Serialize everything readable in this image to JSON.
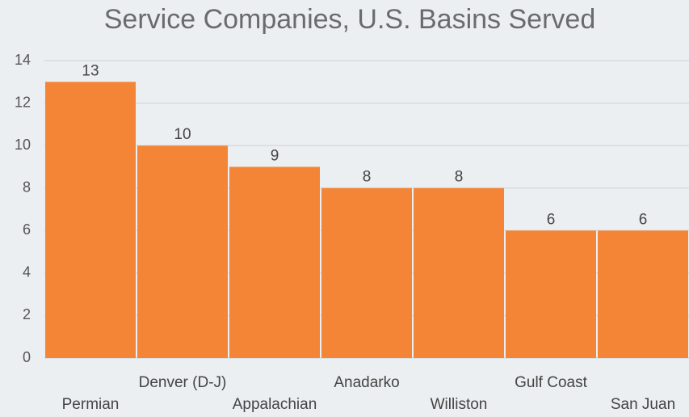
{
  "chart_data": {
    "type": "bar",
    "title": "Service Companies, U.S. Basins Served",
    "categories": [
      "Permian",
      "Denver (D-J)",
      "Appalachian",
      "Anadarko",
      "Williston",
      "Gulf Coast",
      "San Juan"
    ],
    "values": [
      13,
      10,
      9,
      8,
      8,
      6,
      6
    ],
    "color": "#f58536",
    "ylim": [
      0,
      14
    ],
    "yticks": [
      0,
      2,
      4,
      6,
      8,
      10,
      12,
      14
    ],
    "grid": true
  }
}
